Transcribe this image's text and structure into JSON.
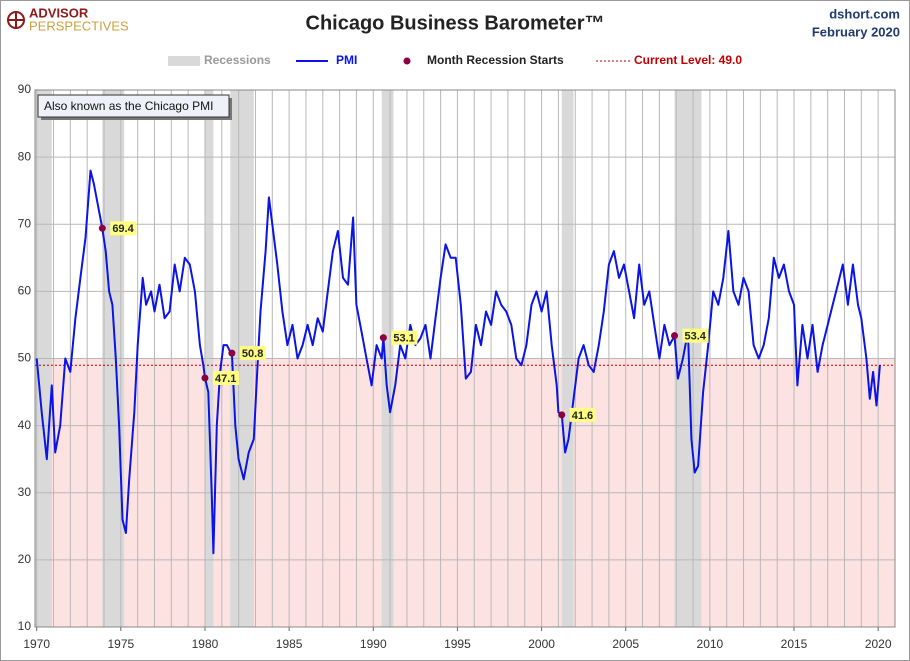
{
  "chart_data": {
    "type": "line",
    "title": "Chicago Business Barometer™",
    "logo_top": "ADVISOR",
    "logo_bottom": "PERSPECTIVES",
    "source": "dshort.com",
    "date": "February 2020",
    "annotation": "Also known as the Chicago PMI",
    "xlim": [
      1969.9,
      2021
    ],
    "ylim": [
      10,
      90
    ],
    "xticks": [
      1970,
      1975,
      1980,
      1985,
      1990,
      1995,
      2000,
      2005,
      2010,
      2015,
      2020
    ],
    "x_minor_ticks": [
      1971,
      1972,
      1973,
      1974,
      1976,
      1977,
      1978,
      1979,
      1981,
      1982,
      1983,
      1984,
      1986,
      1987,
      1988,
      1989,
      1991,
      1992,
      1993,
      1994,
      1996,
      1997,
      1998,
      1999,
      2001,
      2002,
      2003,
      2004,
      2006,
      2007,
      2008,
      2009,
      2011,
      2012,
      2013,
      2014,
      2016,
      2017,
      2018,
      2019
    ],
    "yticks": [
      10,
      20,
      30,
      40,
      50,
      60,
      70,
      80,
      90
    ],
    "grid": true,
    "shade_below": 50,
    "shade_color": "#fde2e2",
    "current_level": 49.0,
    "current_level_label": "Current Level: 49.0",
    "current_level_color": "#c00000",
    "recessions": {
      "name": "Recessions",
      "color": "#d9d9d9",
      "ranges": [
        [
          1969.9,
          1970.9
        ],
        [
          1973.9,
          1975.2
        ],
        [
          1980.0,
          1980.5
        ],
        [
          1981.5,
          1982.9
        ],
        [
          1990.5,
          1991.2
        ],
        [
          2001.2,
          2001.9
        ],
        [
          2007.9,
          2009.5
        ]
      ]
    },
    "recession_starts": {
      "name": "Month Recession Starts",
      "color": "#8b0040",
      "x": [
        1973.9,
        1980.0,
        1981.6,
        1990.6,
        2001.2,
        2007.9
      ],
      "values": [
        69.4,
        47.1,
        50.8,
        53.1,
        41.6,
        53.4
      ]
    },
    "series": [
      {
        "name": "PMI",
        "color": "#0a14e6",
        "x": [
          1970.0,
          1970.3,
          1970.6,
          1970.9,
          1971.1,
          1971.4,
          1971.7,
          1972.0,
          1972.3,
          1972.6,
          1972.9,
          1973.2,
          1973.4,
          1973.7,
          1973.9,
          1974.1,
          1974.3,
          1974.5,
          1974.7,
          1974.9,
          1975.1,
          1975.3,
          1975.5,
          1975.8,
          1976.0,
          1976.3,
          1976.5,
          1976.8,
          1977.0,
          1977.3,
          1977.6,
          1977.9,
          1978.2,
          1978.5,
          1978.8,
          1979.1,
          1979.4,
          1979.7,
          1979.9,
          1980.0,
          1980.2,
          1980.4,
          1980.5,
          1980.7,
          1980.9,
          1981.1,
          1981.3,
          1981.5,
          1981.6,
          1981.8,
          1982.0,
          1982.3,
          1982.6,
          1982.9,
          1983.1,
          1983.3,
          1983.6,
          1983.8,
          1984.0,
          1984.3,
          1984.6,
          1984.9,
          1985.2,
          1985.5,
          1985.8,
          1986.1,
          1986.4,
          1986.7,
          1987.0,
          1987.3,
          1987.6,
          1987.9,
          1988.2,
          1988.5,
          1988.8,
          1989.0,
          1989.3,
          1989.6,
          1989.9,
          1990.2,
          1990.5,
          1990.6,
          1990.8,
          1991.0,
          1991.3,
          1991.6,
          1991.9,
          1992.2,
          1992.5,
          1992.8,
          1993.1,
          1993.4,
          1993.7,
          1994.0,
          1994.3,
          1994.6,
          1994.9,
          1995.2,
          1995.5,
          1995.8,
          1996.1,
          1996.4,
          1996.7,
          1997.0,
          1997.3,
          1997.6,
          1997.9,
          1998.2,
          1998.5,
          1998.8,
          1999.1,
          1999.4,
          1999.7,
          2000.0,
          2000.3,
          2000.6,
          2000.9,
          2001.0,
          2001.2,
          2001.4,
          2001.6,
          2001.9,
          2002.2,
          2002.5,
          2002.8,
          2003.1,
          2003.4,
          2003.7,
          2004.0,
          2004.3,
          2004.6,
          2004.9,
          2005.2,
          2005.5,
          2005.8,
          2006.1,
          2006.4,
          2006.7,
          2007.0,
          2007.3,
          2007.6,
          2007.9,
          2008.1,
          2008.4,
          2008.7,
          2008.9,
          2009.1,
          2009.3,
          2009.6,
          2009.9,
          2010.2,
          2010.5,
          2010.8,
          2011.1,
          2011.4,
          2011.7,
          2012.0,
          2012.3,
          2012.6,
          2012.9,
          2013.2,
          2013.5,
          2013.8,
          2014.1,
          2014.4,
          2014.7,
          2015.0,
          2015.2,
          2015.5,
          2015.8,
          2016.1,
          2016.4,
          2016.7,
          2017.0,
          2017.3,
          2017.6,
          2017.9,
          2018.2,
          2018.5,
          2018.8,
          2019.0,
          2019.3,
          2019.5,
          2019.7,
          2019.9,
          2020.1
        ],
        "values": [
          50,
          42,
          35,
          46,
          36,
          40,
          50,
          48,
          56,
          62,
          68,
          78,
          76,
          72,
          69.4,
          66,
          60,
          58,
          50,
          40,
          26,
          24,
          32,
          42,
          52,
          62,
          58,
          60,
          57,
          61,
          56,
          57,
          64,
          60,
          65,
          64,
          60,
          52,
          49,
          47.1,
          45,
          30,
          21,
          40,
          48,
          52,
          52,
          51,
          50.8,
          40,
          35,
          32,
          36,
          38,
          48,
          57,
          66,
          74,
          70,
          64,
          57,
          52,
          55,
          50,
          52,
          55,
          52,
          56,
          54,
          60,
          66,
          69,
          62,
          61,
          71,
          58,
          54,
          50,
          46,
          52,
          50,
          53.1,
          46,
          42,
          46,
          52,
          50,
          55,
          52,
          53,
          55,
          50,
          56,
          62,
          67,
          65,
          65,
          58,
          47,
          48,
          55,
          52,
          57,
          55,
          60,
          58,
          57,
          55,
          50,
          49,
          52,
          58,
          60,
          57,
          60,
          52,
          46,
          42,
          41.6,
          36,
          38,
          44,
          50,
          52,
          49,
          48,
          52,
          57,
          64,
          66,
          62,
          64,
          60,
          56,
          64,
          58,
          60,
          55,
          50,
          55,
          52,
          53.4,
          47,
          50,
          54,
          38,
          33,
          34,
          45,
          52,
          60,
          58,
          62,
          69,
          60,
          58,
          62,
          60,
          52,
          50,
          52,
          56,
          65,
          62,
          64,
          60,
          58,
          46,
          55,
          50,
          55,
          48,
          52,
          55,
          58,
          61,
          64,
          58,
          64,
          58,
          56,
          50,
          44,
          48,
          43,
          49.0
        ]
      }
    ]
  }
}
